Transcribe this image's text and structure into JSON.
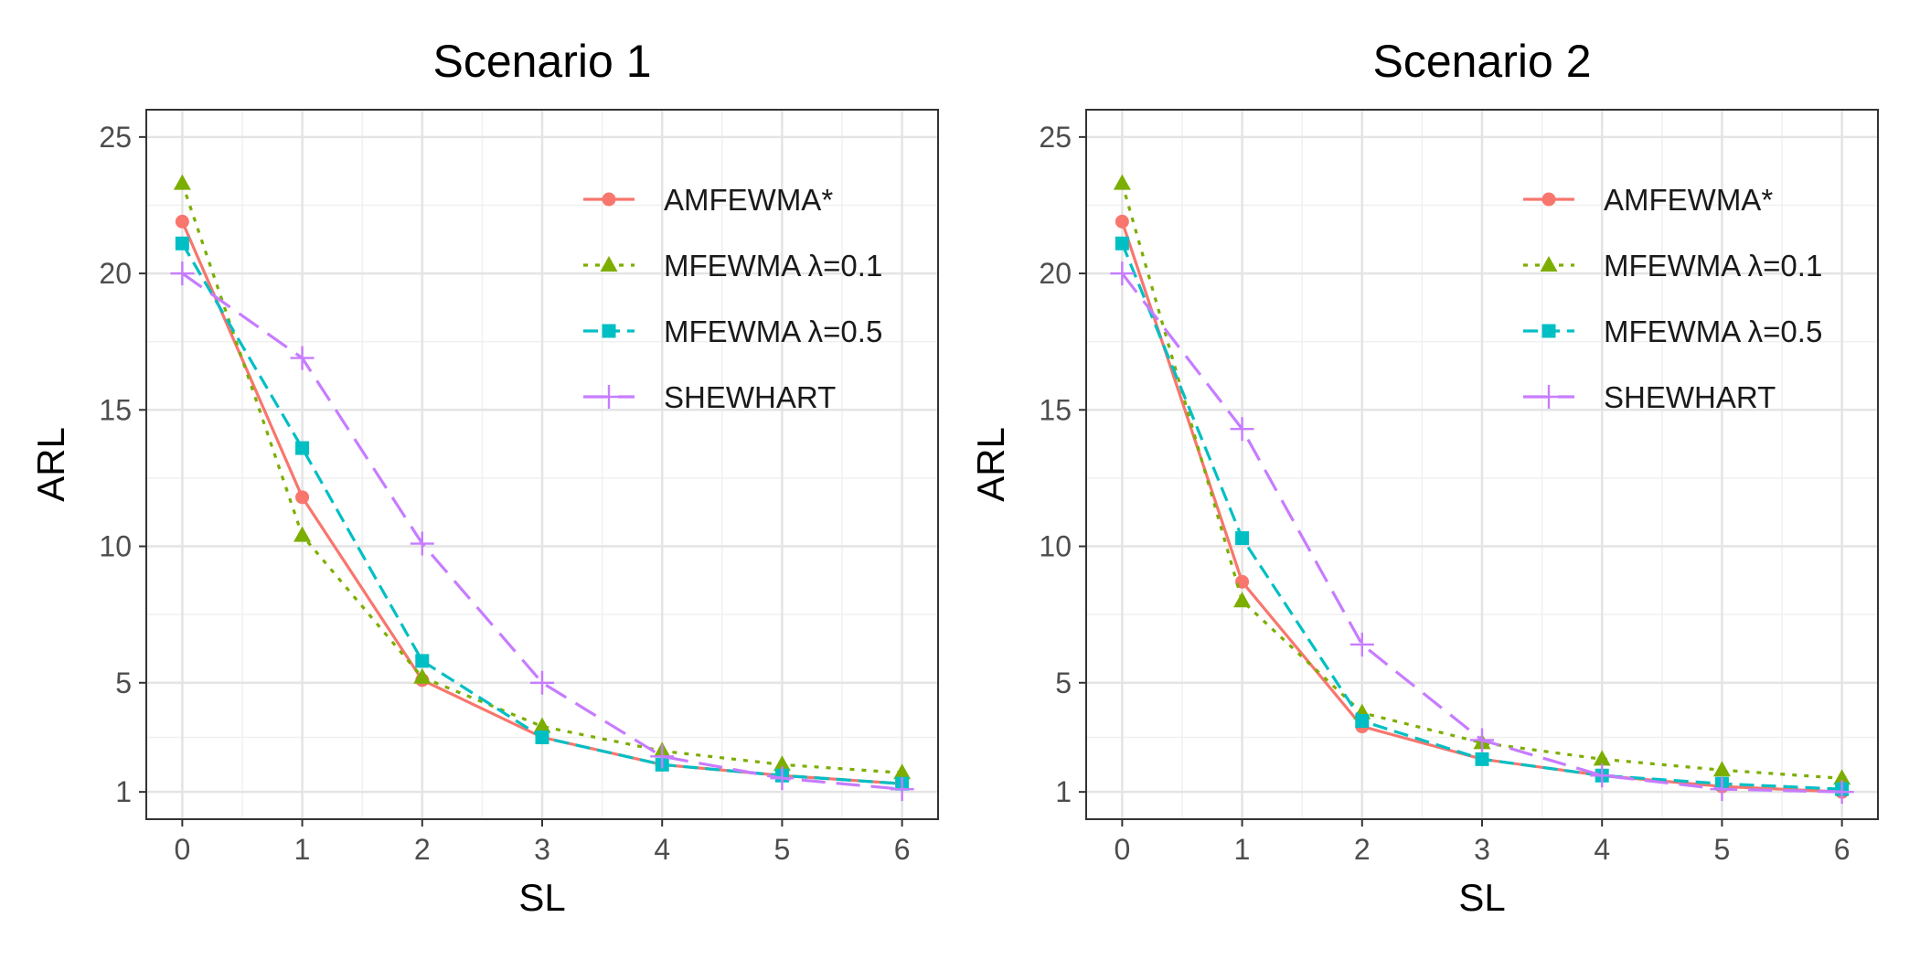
{
  "chart_data": [
    {
      "type": "line",
      "title": "Scenario 1",
      "xlabel": "SL",
      "ylabel": "ARL",
      "x": [
        0,
        1,
        2,
        3,
        4,
        5,
        6
      ],
      "xlim": [
        -0.3,
        6.3
      ],
      "ylim": [
        0.0,
        26.0
      ],
      "xticks": [
        "0",
        "1",
        "2",
        "3",
        "4",
        "5",
        "6"
      ],
      "yticks": [
        1,
        5,
        10,
        15,
        20,
        25
      ],
      "grid": true,
      "legend_position": "top-right",
      "series": [
        {
          "name": "AMFEWMA*",
          "color": "#F8766D",
          "dash": "solid",
          "marker": "circle",
          "values": [
            21.9,
            11.8,
            5.1,
            3.0,
            2.0,
            1.6,
            1.3
          ]
        },
        {
          "name": "MFEWMA λ=0.1",
          "color": "#7CAE00",
          "dash": "dotted",
          "marker": "triangle",
          "values": [
            23.3,
            10.4,
            5.2,
            3.4,
            2.5,
            2.0,
            1.7
          ]
        },
        {
          "name": "MFEWMA λ=0.5",
          "color": "#00BFC4",
          "dash": "dashed",
          "marker": "square",
          "values": [
            21.1,
            13.6,
            5.8,
            3.0,
            2.0,
            1.6,
            1.3
          ]
        },
        {
          "name": "SHEWHART",
          "color": "#C77CFF",
          "dash": "longdash",
          "marker": "plus",
          "values": [
            20.0,
            16.9,
            10.1,
            5.0,
            2.3,
            1.5,
            1.1
          ]
        }
      ]
    },
    {
      "type": "line",
      "title": "Scenario 2",
      "xlabel": "SL",
      "ylabel": "ARL",
      "x": [
        0,
        1,
        2,
        3,
        4,
        5,
        6
      ],
      "xlim": [
        -0.3,
        6.3
      ],
      "ylim": [
        0.0,
        26.0
      ],
      "xticks": [
        "0",
        "1",
        "2",
        "3",
        "4",
        "5",
        "6"
      ],
      "yticks": [
        1,
        5,
        10,
        15,
        20,
        25
      ],
      "grid": true,
      "legend_position": "top-right",
      "series": [
        {
          "name": "AMFEWMA*",
          "color": "#F8766D",
          "dash": "solid",
          "marker": "circle",
          "values": [
            21.9,
            8.7,
            3.4,
            2.2,
            1.6,
            1.2,
            1.0
          ]
        },
        {
          "name": "MFEWMA λ=0.1",
          "color": "#7CAE00",
          "dash": "dotted",
          "marker": "triangle",
          "values": [
            23.3,
            8.0,
            3.9,
            2.8,
            2.2,
            1.8,
            1.5
          ]
        },
        {
          "name": "MFEWMA λ=0.5",
          "color": "#00BFC4",
          "dash": "dashed",
          "marker": "square",
          "values": [
            21.1,
            10.3,
            3.6,
            2.2,
            1.6,
            1.3,
            1.1
          ]
        },
        {
          "name": "SHEWHART",
          "color": "#C77CFF",
          "dash": "longdash",
          "marker": "plus",
          "values": [
            20.0,
            14.3,
            6.4,
            2.9,
            1.6,
            1.1,
            1.0
          ]
        }
      ]
    }
  ]
}
